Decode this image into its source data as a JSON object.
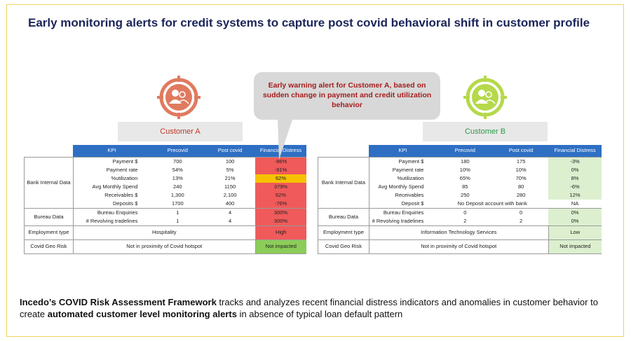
{
  "title": "Early monitoring alerts for credit systems to capture post covid behavioral shift in customer profile",
  "callout": "Early warning alert for Customer A, based on sudden change in payment and credit utilization behavior",
  "customer_a": {
    "label": "Customer A",
    "headers": [
      "KPI",
      "Precovid",
      "Post covid",
      "Financial Distress"
    ],
    "groups": {
      "bank": "Bank Internal Data",
      "bureau": "Bureau Data",
      "employment": "Employment type",
      "geo": "Covid Geo Risk"
    },
    "rows": [
      {
        "kpi": "Payment $",
        "pre": "700",
        "post": "100",
        "fd": "-86%"
      },
      {
        "kpi": "Payment rate",
        "pre": "54%",
        "post": "5%",
        "fd": "-91%"
      },
      {
        "kpi": "%utilization",
        "pre": "13%",
        "post": "21%",
        "fd": "62%"
      },
      {
        "kpi": "Avg Monthly Spend",
        "pre": "240",
        "post": "1150",
        "fd": "379%"
      },
      {
        "kpi": "Receivables $",
        "pre": "1,300",
        "post": "2,100",
        "fd": "62%"
      },
      {
        "kpi": "Deposits $",
        "pre": "1700",
        "post": "400",
        "fd": "-76%"
      },
      {
        "kpi": "Bureau Enquiries",
        "pre": "1",
        "post": "4",
        "fd": "300%"
      },
      {
        "kpi": "# Revolving tradelines",
        "pre": "1",
        "post": "4",
        "fd": "300%"
      }
    ],
    "employment_value": "Hospitality",
    "employment_fd": "High",
    "geo_value": "Not in proximity of Covid hotspot",
    "geo_fd": "Not impacted"
  },
  "customer_b": {
    "label": "Customer B",
    "headers": [
      "KPI",
      "Precovid",
      "Post covid",
      "Financial Distress"
    ],
    "groups": {
      "bank": "Bank Internal Data",
      "bureau": "Bureau Data",
      "employment": "Employment type",
      "geo": "Covid Geo Risk"
    },
    "rows": [
      {
        "kpi": "Payment $",
        "pre": "180",
        "post": "175",
        "fd": "-3%"
      },
      {
        "kpi": "Payment rate",
        "pre": "10%",
        "post": "10%",
        "fd": "0%"
      },
      {
        "kpi": "%utilization",
        "pre": "65%",
        "post": "70%",
        "fd": "8%"
      },
      {
        "kpi": "Avg Monthly Spend",
        "pre": "85",
        "post": "80",
        "fd": "-6%"
      },
      {
        "kpi": "Receivables",
        "pre": "250",
        "post": "280",
        "fd": "12%"
      },
      {
        "kpi": "Deposit $",
        "merged": "No Deposit account with bank",
        "fd": "NA"
      },
      {
        "kpi": "Bureau Enquiries",
        "pre": "0",
        "post": "0",
        "fd": "0%"
      },
      {
        "kpi": "# Revolving tradelines",
        "pre": "2",
        "post": "2",
        "fd": "0%"
      }
    ],
    "employment_value": "Information Technology Services",
    "employment_fd": "Low",
    "geo_value": "Not in proximity of Covid hotspot",
    "geo_fd": "Not impacted"
  },
  "footer": {
    "brand": "Incedo’s COVID Risk Assessment Framework",
    "text1": " tracks and analyzes recent financial distress indicators and anomalies in customer behavior to create ",
    "emph": "automated customer level monitoring alerts",
    "text2": " in absence of typical loan default pattern"
  },
  "colors": {
    "customer_a_icon": "#e07a5f",
    "customer_b_icon": "#b5d94a",
    "header_blue": "#2e6fc4",
    "alert_red": "#f05a5a",
    "warn_yellow": "#f5c200",
    "ok_green": "#8ccc5a"
  },
  "icons": {
    "customer_a": "user-group-target-icon",
    "customer_b": "user-group-target-icon"
  }
}
